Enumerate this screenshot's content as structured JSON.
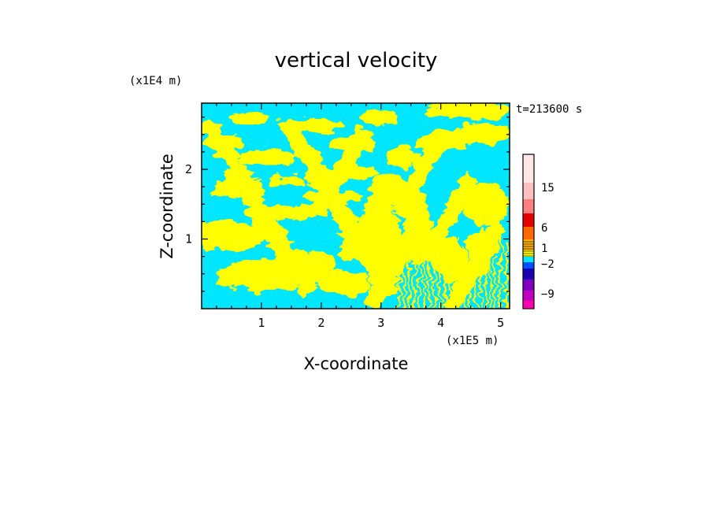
{
  "chart_data": {
    "type": "heatmap",
    "title": "vertical velocity",
    "xlabel": "X-coordinate",
    "ylabel": "Z-coordinate",
    "x_unit": "(x1E5 m)",
    "y_unit": "(x1E4 m)",
    "time_label": "t=213600 s",
    "xlim": [
      0,
      5.15
    ],
    "ylim": [
      0,
      2.95
    ],
    "x_ticks": [
      1,
      2,
      3,
      4,
      5
    ],
    "y_ticks": [
      1,
      2
    ],
    "colorbar": {
      "label_values": [
        "15",
        "6",
        "1",
        "−2",
        "−9"
      ],
      "colors": [
        "#ffe6e6",
        "#ffbfbf",
        "#ff7f7f",
        "#e60000",
        "#ff6a00",
        "#ffb000",
        "#ffff00",
        "#00e6ff",
        "#0050ff",
        "#1a00b0",
        "#8000c0",
        "#c000c0",
        "#ff00b0"
      ]
    },
    "field_colors": {
      "positive": "#ffff00",
      "negative": "#00e6ff"
    }
  }
}
